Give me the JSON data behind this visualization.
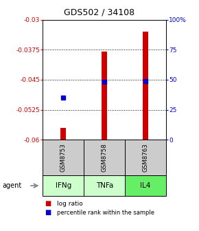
{
  "title": "GDS502 / 34108",
  "samples": [
    "GSM8753",
    "GSM8758",
    "GSM8763"
  ],
  "agents": [
    "IFNg",
    "TNFa",
    "IL4"
  ],
  "log_ratio_values": [
    -0.057,
    -0.038,
    -0.033
  ],
  "log_ratio_base": -0.06,
  "percentile_values": [
    35,
    48,
    49
  ],
  "left_ylim": [
    -0.06,
    -0.03
  ],
  "right_ylim": [
    0,
    100
  ],
  "left_yticks": [
    -0.06,
    -0.0525,
    -0.045,
    -0.0375,
    -0.03
  ],
  "left_ytick_labels": [
    "-0.06",
    "-0.0525",
    "-0.045",
    "-0.0375",
    "-0.03"
  ],
  "right_yticks": [
    0,
    25,
    50,
    75,
    100
  ],
  "right_ytick_labels": [
    "0",
    "25",
    "50",
    "75",
    "100%"
  ],
  "bar_color": "#cc0000",
  "dot_color": "#0000cc",
  "agent_box_colors": [
    "#ccffcc",
    "#ccffcc",
    "#66ee66"
  ],
  "left_tick_color": "#cc0000",
  "right_tick_color": "#0000cc"
}
